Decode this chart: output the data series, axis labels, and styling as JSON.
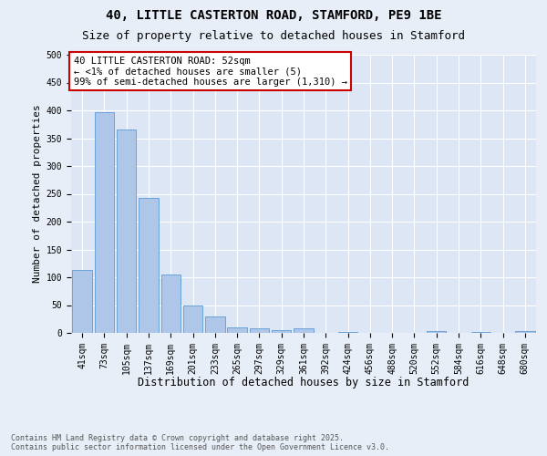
{
  "title_line1": "40, LITTLE CASTERTON ROAD, STAMFORD, PE9 1BE",
  "title_line2": "Size of property relative to detached houses in Stamford",
  "xlabel": "Distribution of detached houses by size in Stamford",
  "ylabel": "Number of detached properties",
  "categories": [
    "41sqm",
    "73sqm",
    "105sqm",
    "137sqm",
    "169sqm",
    "201sqm",
    "233sqm",
    "265sqm",
    "297sqm",
    "329sqm",
    "361sqm",
    "392sqm",
    "424sqm",
    "456sqm",
    "488sqm",
    "520sqm",
    "552sqm",
    "584sqm",
    "616sqm",
    "648sqm",
    "680sqm"
  ],
  "values": [
    113,
    397,
    365,
    242,
    105,
    50,
    29,
    10,
    8,
    5,
    8,
    0,
    1,
    0,
    0,
    0,
    3,
    0,
    1,
    0,
    4
  ],
  "bar_color": "#aec6e8",
  "bar_edge_color": "#5b9bd5",
  "plot_bg_color": "#dce6f5",
  "fig_bg_color": "#e8eef8",
  "annotation_text": "40 LITTLE CASTERTON ROAD: 52sqm\n← <1% of detached houses are smaller (5)\n99% of semi-detached houses are larger (1,310) →",
  "annotation_face_color": "#ffffff",
  "annotation_edge_color": "#cc0000",
  "ylim": [
    0,
    500
  ],
  "yticks": [
    0,
    50,
    100,
    150,
    200,
    250,
    300,
    350,
    400,
    450,
    500
  ],
  "footer_text": "Contains HM Land Registry data © Crown copyright and database right 2025.\nContains public sector information licensed under the Open Government Licence v3.0.",
  "grid_color": "#ffffff",
  "title_fontsize": 10,
  "subtitle_fontsize": 9,
  "xlabel_fontsize": 8.5,
  "ylabel_fontsize": 8,
  "tick_fontsize": 7,
  "annotation_fontsize": 7.5,
  "footer_fontsize": 6
}
